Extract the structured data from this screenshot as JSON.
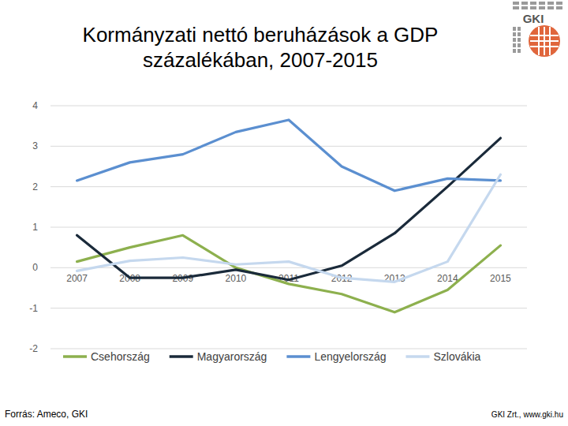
{
  "chart_data": {
    "type": "line",
    "title": "Kormányzati nettó beruházások a GDP százalékában, 2007-2015",
    "source": "Forrás: Ameco, GKI",
    "footer": "GKI Zrt., www.gki.hu",
    "logo": "GKI",
    "categories": [
      "2007",
      "2008",
      "2009",
      "2010",
      "2011",
      "2012",
      "2013",
      "2014",
      "2015"
    ],
    "series": [
      {
        "name": "Csehország",
        "color": "#8db04e",
        "values": [
          0.15,
          0.5,
          0.8,
          0.0,
          -0.4,
          -0.65,
          -1.1,
          -0.55,
          0.55
        ]
      },
      {
        "name": "Magyarország",
        "color": "#1a2a3a",
        "values": [
          0.8,
          -0.25,
          -0.25,
          -0.05,
          -0.3,
          0.05,
          0.85,
          2.0,
          3.2
        ]
      },
      {
        "name": "Lengyelország",
        "color": "#5b8fd0",
        "values": [
          2.15,
          2.6,
          2.8,
          3.35,
          3.65,
          2.5,
          1.9,
          2.2,
          2.15
        ]
      },
      {
        "name": "Szlovákia",
        "color": "#c5d8ee",
        "values": [
          -0.08,
          0.17,
          0.25,
          0.08,
          0.15,
          -0.25,
          -0.35,
          0.15,
          2.3
        ]
      }
    ],
    "ylim": [
      -2,
      4
    ],
    "yticks": [
      -2,
      -1,
      0,
      1,
      2,
      3,
      4
    ],
    "grid": true,
    "legend": "bottom"
  }
}
